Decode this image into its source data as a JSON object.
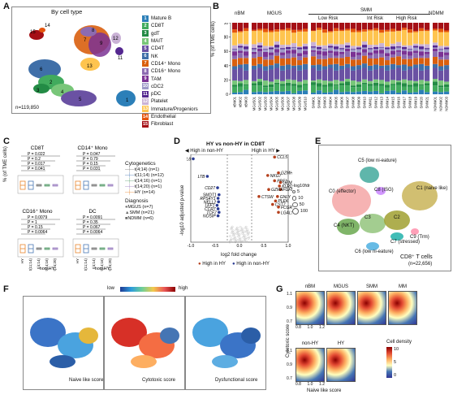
{
  "panels": {
    "a": "A",
    "b": "B",
    "c": "C",
    "d": "D",
    "e": "E",
    "f": "F",
    "g": "G"
  },
  "panel_a": {
    "title": "By cell type",
    "count": "n=119,850",
    "legend": [
      {
        "num": "1",
        "label": "Mature B",
        "color": "#2c7fb8"
      },
      {
        "num": "2",
        "label": "CD8T",
        "color": "#41ab5d"
      },
      {
        "num": "3",
        "label": "gdT",
        "color": "#238b45"
      },
      {
        "num": "4",
        "label": "MAIT",
        "color": "#78c679"
      },
      {
        "num": "5",
        "label": "CD4T",
        "color": "#6a51a3"
      },
      {
        "num": "6",
        "label": "NK",
        "color": "#3f6fa8"
      },
      {
        "num": "7",
        "label": "CD14⁺ Mono",
        "color": "#d95f0e"
      },
      {
        "num": "8",
        "label": "CD16⁺ Mono",
        "color": "#8c6bb1"
      },
      {
        "num": "9",
        "label": "TAM",
        "color": "#7b3294"
      },
      {
        "num": "10",
        "label": "cDC2",
        "color": "#9e9ac8"
      },
      {
        "num": "11",
        "label": "pDC",
        "color": "#54278f"
      },
      {
        "num": "12",
        "label": "Platelet",
        "color": "#cab2d6"
      },
      {
        "num": "13",
        "label": "Immature/Progeniors",
        "color": "#fec44f"
      },
      {
        "num": "14",
        "label": "Endothelial",
        "color": "#e6550d"
      },
      {
        "num": "15",
        "label": "Fibroblast",
        "color": "#a50f15"
      }
    ],
    "cluster_labels": [
      "1",
      "2",
      "3",
      "4",
      "5",
      "6",
      "7",
      "8",
      "9",
      "10",
      "11",
      "12",
      "13",
      "14",
      "15"
    ]
  },
  "panel_b": {
    "ylabel": "% (of TME cells)",
    "groups": [
      "nBM",
      "MGUS",
      "SMM",
      "NDMM"
    ],
    "subgroups": [
      "Low Risk",
      "Int Risk",
      "High Risk"
    ],
    "y_ticks": [
      "0",
      "20",
      "40",
      "60",
      "80",
      "100"
    ],
    "samples": [
      "nBM01",
      "nBM02",
      "nBM03",
      "MGUS01",
      "MGUS02",
      "MGUS03",
      "MGUS04",
      "MGUS05",
      "MGUS06",
      "MGUS07",
      "MGUS08",
      "MGUS09",
      "MGUS10",
      "SMM01",
      "SMM02",
      "SMM03",
      "SMM04",
      "SMM05",
      "SMM06",
      "SMM07",
      "SMM08",
      "SMM09",
      "SMM10",
      "SMM11",
      "SMM12",
      "SMM13",
      "SMM14",
      "SMM15",
      "SMM16",
      "SMM17",
      "SMM18",
      "SMM19",
      "SMM20",
      "SMM21",
      "NDMM01",
      "NDMM02",
      "NDMM03"
    ]
  },
  "chart_data": [
    {
      "type": "bar",
      "title": "",
      "ylabel": "% (of TME cells)",
      "ylim": [
        0,
        100
      ],
      "categories": [
        "nBM01",
        "nBM02",
        "nBM03",
        "MGUS01",
        "MGUS02",
        "MGUS03",
        "MGUS04",
        "MGUS05",
        "MGUS06",
        "MGUS07",
        "MGUS08",
        "MGUS09",
        "MGUS10",
        "SMM01",
        "SMM02",
        "SMM03",
        "SMM04",
        "SMM05",
        "SMM06",
        "SMM07",
        "SMM08",
        "SMM09",
        "SMM10",
        "SMM11",
        "SMM12",
        "SMM13",
        "SMM14",
        "SMM15",
        "SMM16",
        "SMM17",
        "SMM18",
        "SMM19",
        "SMM20",
        "SMM21",
        "NDMM01",
        "NDMM02",
        "NDMM03"
      ],
      "stacked": true
    },
    {
      "type": "scatter",
      "title": "HY vs non-HY in CD8T",
      "xlabel": "log2 fold change",
      "ylabel": "-log10 adjusted p-value",
      "xlim": [
        -1.0,
        1.0
      ],
      "x_ticks": [
        "-1.0",
        "-0.5",
        "0.0",
        "0.5",
        "1.0"
      ],
      "labels": [
        "MTRNR2L8",
        "LTB",
        "CD27",
        "SMDT1",
        "RPS4Y1",
        "NELL2",
        "LEF1",
        "CCR7",
        "TCF7",
        "NOSIP",
        "CCL5",
        "GZMH",
        "NKG7",
        "PRF1",
        "GZMB",
        "KLRD1",
        "FGFBP2",
        "GZMA",
        "CTSW",
        "GNLY",
        "PLEK",
        "CST7",
        "FCGR3A",
        "LGALS1"
      ],
      "points": [
        {
          "label": "MTRNR2L8",
          "x": -0.95,
          "y": 0.95,
          "group": "High in non-HY"
        },
        {
          "label": "LTB",
          "x": -0.66,
          "y": 0.75,
          "group": "High in non-HY"
        },
        {
          "label": "CD27",
          "x": -0.45,
          "y": 0.62,
          "group": "High in non-HY"
        },
        {
          "label": "SMDT1",
          "x": -0.42,
          "y": 0.54,
          "group": "High in non-HY"
        },
        {
          "label": "RPS4Y1",
          "x": -0.44,
          "y": 0.5,
          "group": "High in non-HY"
        },
        {
          "label": "NELL2",
          "x": -0.43,
          "y": 0.46,
          "group": "High in non-HY"
        },
        {
          "label": "LEF1",
          "x": -0.46,
          "y": 0.42,
          "group": "High in non-HY"
        },
        {
          "label": "CCR7",
          "x": -0.44,
          "y": 0.38,
          "group": "High in non-HY"
        },
        {
          "label": "TCF7",
          "x": -0.42,
          "y": 0.34,
          "group": "High in non-HY"
        },
        {
          "label": "NOSIP",
          "x": -0.44,
          "y": 0.3,
          "group": "High in non-HY"
        },
        {
          "label": "CCL5",
          "x": 0.72,
          "y": 0.97,
          "group": "High in HY"
        },
        {
          "label": "GZMH",
          "x": 0.8,
          "y": 0.79,
          "group": "High in HY"
        },
        {
          "label": "NKG7",
          "x": 0.58,
          "y": 0.76,
          "group": "High in HY"
        },
        {
          "label": "PRF1",
          "x": 0.72,
          "y": 0.7,
          "group": "High in HY"
        },
        {
          "label": "GZMB",
          "x": 0.84,
          "y": 0.68,
          "group": "High in HY"
        },
        {
          "label": "KLRD1",
          "x": 0.82,
          "y": 0.64,
          "group": "High in HY"
        },
        {
          "label": "FGFBP2",
          "x": 0.84,
          "y": 0.6,
          "group": "High in HY"
        },
        {
          "label": "GZMA",
          "x": 0.6,
          "y": 0.6,
          "group": "High in HY"
        },
        {
          "label": "CTSW",
          "x": 0.4,
          "y": 0.52,
          "group": "High in HY"
        },
        {
          "label": "GNLY",
          "x": 0.78,
          "y": 0.52,
          "group": "High in HY"
        },
        {
          "label": "PLEK",
          "x": 0.74,
          "y": 0.47,
          "group": "High in HY"
        },
        {
          "label": "CST7",
          "x": 0.68,
          "y": 0.43,
          "group": "High in HY"
        },
        {
          "label": "FCGR3A",
          "x": 0.8,
          "y": 0.4,
          "group": "High in HY"
        },
        {
          "label": "LGALS1",
          "x": 0.8,
          "y": 0.34,
          "group": "High in HY"
        }
      ],
      "legend": [
        "High in HY",
        "High in non-HY"
      ],
      "size_legend_title": "-log10fdr",
      "size_legend": [
        "5",
        "10",
        "50",
        "100"
      ]
    }
  ],
  "panel_c": {
    "ylabel": "% (of TME cells)",
    "subplots": [
      {
        "title": "CD8T",
        "pvals": [
          "P = 0.022",
          "P = 0.2",
          "P = 0.017",
          "P = 0.041"
        ]
      },
      {
        "title": "CD14⁺ Mono",
        "pvals": [
          "P = 0.047",
          "P = 0.79",
          "P = 0.15",
          "P = 0.031"
        ]
      },
      {
        "title": "CD16⁺ Mono",
        "pvals": [
          "P = 0.0079",
          "P = 1",
          "P = 0.15",
          "P = 0.0064"
        ]
      },
      {
        "title": "DC",
        "pvals": [
          "P = 0.0091",
          "P = 0.35",
          "P = 0.067",
          "P = 0.0064"
        ]
      }
    ],
    "x_ticks": [
      "HY",
      "t(11;14)",
      "t(4;14)",
      "t(14;16)",
      "t(14;20)"
    ],
    "group_label": "non-HY",
    "cytogenetics_title": "Cytogenetics",
    "cytogenetics": [
      {
        "label": "t(4;14) (n=1)",
        "color": "#7a7a7a"
      },
      {
        "label": "t(11;14) (n=12)",
        "color": "#4a78b5"
      },
      {
        "label": "t(14;16) (n=1)",
        "color": "#5a9e6f"
      },
      {
        "label": "t(14;20) (n=1)",
        "color": "#9b7fc1"
      },
      {
        "label": "HY (n=14)",
        "color": "#e8862e"
      }
    ],
    "diagnosis_title": "Diagnosis",
    "diagnosis": [
      {
        "label": "MGUS (n=7)"
      },
      {
        "label": "SMM (n=21)"
      },
      {
        "label": "NDMM (n=6)"
      }
    ]
  },
  "panel_d": {
    "title": "HY vs non-HY in CD8T",
    "arrow_left": "High in non-HY",
    "arrow_right": "High in HY",
    "xlabel": "log2 fold change",
    "ylabel": "-log10 adjusted p-value",
    "legend_hy": "High in HY",
    "legend_nonhy": "High in non-HY",
    "size_title": "-log10fdr",
    "sizes": [
      "5",
      "10",
      "50",
      "100"
    ],
    "x_ticks": [
      "-1.0",
      "-0.5",
      "0.0",
      "0.5",
      "1.0"
    ]
  },
  "panel_e": {
    "clusters": [
      {
        "label": "C5 (low ni-eature)"
      },
      {
        "label": "C0 (effector)"
      },
      {
        "label": "C8 (ISG)"
      },
      {
        "label": "C1 (naive like)"
      },
      {
        "label": "C4 (NKT)"
      },
      {
        "label": "C3"
      },
      {
        "label": "C2"
      },
      {
        "label": "C7 (stressed)"
      },
      {
        "label": "C9 (Trm)"
      },
      {
        "label": "C6 (low ni-eature)"
      }
    ],
    "title": "CD8⁺ T cells",
    "count": "(n=22,656)"
  },
  "panel_f": {
    "scale_low": "low",
    "scale_high": "high",
    "captions": [
      "Naive like score",
      "Cytotoxic score",
      "Dysfunctional score"
    ]
  },
  "panel_g": {
    "groups_top": [
      "nBM",
      "MGUS",
      "SMM",
      "MM"
    ],
    "groups_bottom": [
      "non-HY",
      "HY"
    ],
    "xlabel": "Naive like score",
    "ylabel": "Cytotoxic score",
    "x_ticks": [
      "0.8",
      "1.0",
      "1.2"
    ],
    "y_ticks": [
      "1.1",
      "0.9",
      "0.7"
    ],
    "density_title": "Cell density",
    "density_ticks": [
      "10",
      "5",
      "0"
    ]
  }
}
